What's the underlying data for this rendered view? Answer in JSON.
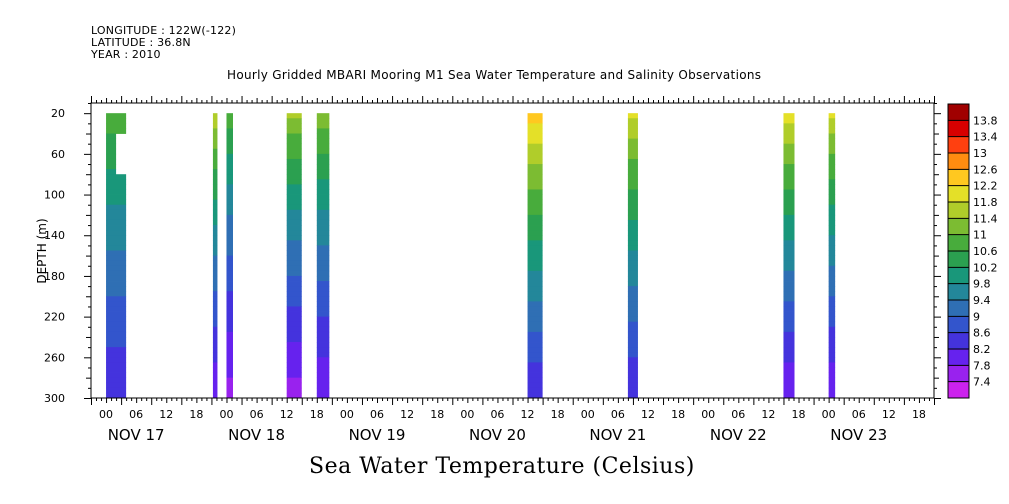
{
  "header": {
    "longitude": "LONGITUDE : 122W(-122)",
    "latitude": "LATITUDE : 36.8N",
    "year": "YEAR : 2010"
  },
  "chart_data": {
    "type": "heatmap",
    "title": "Hourly Gridded MBARI Mooring M1 Sea Water Temperature and Salinity Observations",
    "variable_title": "Sea Water Temperature (Celsius)",
    "ylabel": "DEPTH (m)",
    "y_axis": {
      "range": [
        300,
        10
      ],
      "reversed": true,
      "tick_values": [
        20,
        60,
        100,
        140,
        180,
        220,
        260,
        300
      ]
    },
    "x_axis": {
      "range_hours": [
        0,
        168
      ],
      "hour_tick_labels": [
        "00",
        "06",
        "12",
        "18"
      ],
      "day_labels": [
        "NOV 17",
        "NOV 18",
        "NOV 19",
        "NOV 20",
        "NOV 21",
        "NOV 22",
        "NOV 23"
      ]
    },
    "colorbar": {
      "levels": [
        7.4,
        7.8,
        8.2,
        8.6,
        9,
        9.4,
        9.8,
        10.2,
        10.6,
        11,
        11.4,
        11.8,
        12.2,
        12.6,
        13,
        13.4,
        13.8
      ],
      "colors": [
        "#cc22ee",
        "#9922ee",
        "#6622ee",
        "#4433dd",
        "#3355cc",
        "#2f6fb4",
        "#23879a",
        "#19977a",
        "#2ba050",
        "#48ac3c",
        "#7cbc32",
        "#b0cd2a",
        "#e4e028",
        "#ffc820",
        "#ff8c10",
        "#ff4010",
        "#d80000",
        "#a00000"
      ]
    },
    "columns": [
      {
        "start": 3,
        "end": 7,
        "top_temp": 11.0,
        "bottom_temp": 8.2,
        "gap_depth": [
          40,
          80
        ],
        "gap_side": "right"
      },
      {
        "start": 24.3,
        "end": 25.2,
        "top_temp": 11.8,
        "bottom_temp": 7.8
      },
      {
        "start": 27,
        "end": 28.3,
        "top_temp": 11.0,
        "bottom_temp": 7.6
      },
      {
        "start": 39,
        "end": 42,
        "top_temp": 11.6,
        "bottom_temp": 7.6
      },
      {
        "start": 45,
        "end": 47.5,
        "top_temp": 11.4,
        "bottom_temp": 7.8
      },
      {
        "start": 87,
        "end": 90,
        "top_temp": 12.6,
        "bottom_temp": 8.2
      },
      {
        "start": 107,
        "end": 109,
        "top_temp": 12.0,
        "bottom_temp": 8.2
      },
      {
        "start": 138,
        "end": 140.2,
        "top_temp": 12.2,
        "bottom_temp": 7.8
      },
      {
        "start": 147,
        "end": 148.3,
        "top_temp": 12.0,
        "bottom_temp": 7.8
      }
    ]
  }
}
